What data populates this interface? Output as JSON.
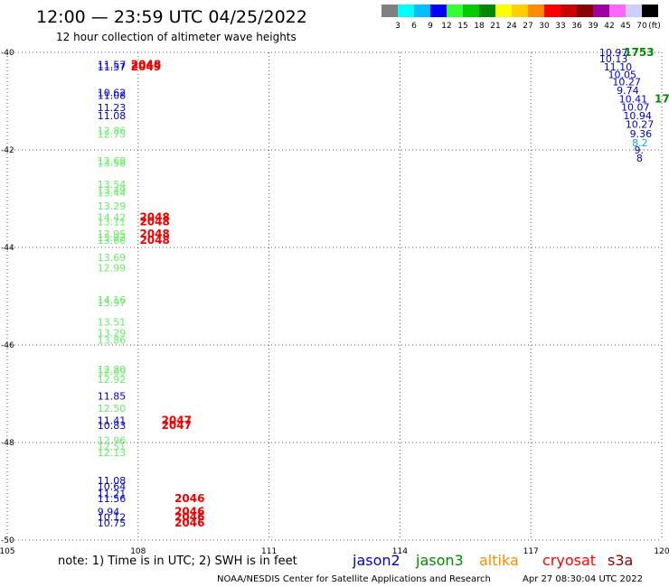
{
  "header": {
    "title": "12:00 — 23:59 UTC 04/25/2022",
    "subtitle": "12 hour collection of altimeter wave heights"
  },
  "legend_scale": {
    "colors": [
      "#808080",
      "#00ffff",
      "#00bfff",
      "#0000ff",
      "#33ff33",
      "#00cc00",
      "#008800",
      "#ffff00",
      "#ffd000",
      "#ff8c00",
      "#ff0000",
      "#cc0000",
      "#880000",
      "#a000a0",
      "#ff66ff",
      "#ccccff",
      "#000000"
    ],
    "labels": [
      "3",
      "6",
      "9",
      "12",
      "15",
      "18",
      "21",
      "24",
      "27",
      "30",
      "33",
      "36",
      "39",
      "42",
      "45",
      "70"
    ],
    "unit": "(ft)"
  },
  "footer": {
    "note": "note: 1) Time is in UTC; 2) SWH is in feet",
    "credit": "NOAA/NESDIS Center for Satellite Applications and Research",
    "timestamp": "Apr 27 08:30:04 UTC 2022"
  },
  "satellites": [
    {
      "name": "jason2",
      "color": "#0000cc"
    },
    {
      "name": "jason3",
      "color": "#008800"
    },
    {
      "name": "altika",
      "color": "#ff8c00"
    },
    {
      "name": "cryosat",
      "color": "#ff0000"
    },
    {
      "name": "s3a",
      "color": "#880000"
    }
  ],
  "chart_data": {
    "type": "scatter",
    "title": "12 hour collection of altimeter wave heights",
    "xlim": [
      105,
      120
    ],
    "ylim": [
      -50,
      -40
    ],
    "x_ticks": [
      "105",
      "108",
      "111",
      "114",
      "117",
      "120"
    ],
    "y_ticks": [
      "-40",
      "-42",
      "-44",
      "-46",
      "-48",
      "-50"
    ],
    "grid": true,
    "swh_labels": [
      {
        "lon": 108.0,
        "lat": -40.25,
        "text": "11.57",
        "color": "#0000cc"
      },
      {
        "lon": 108.0,
        "lat": -40.3,
        "text": "11.57",
        "color": "#0000cc"
      },
      {
        "lon": 108.0,
        "lat": -40.82,
        "text": "10.62",
        "color": "#0000cc"
      },
      {
        "lon": 108.0,
        "lat": -40.88,
        "text": "11.08",
        "color": "#0000cc"
      },
      {
        "lon": 108.0,
        "lat": -41.13,
        "text": "11.23",
        "color": "#0000cc"
      },
      {
        "lon": 108.0,
        "lat": -41.3,
        "text": "11.08",
        "color": "#0000cc"
      },
      {
        "lon": 108.0,
        "lat": -41.6,
        "text": "12.86",
        "color": "#66ee66"
      },
      {
        "lon": 108.0,
        "lat": -41.68,
        "text": "12.75",
        "color": "#66ee66"
      },
      {
        "lon": 108.0,
        "lat": -42.22,
        "text": "12.68",
        "color": "#66ee66"
      },
      {
        "lon": 108.0,
        "lat": -42.27,
        "text": "13.58",
        "color": "#66ee66"
      },
      {
        "lon": 108.0,
        "lat": -42.7,
        "text": "13.54",
        "color": "#66ee66"
      },
      {
        "lon": 108.0,
        "lat": -42.82,
        "text": "13.49",
        "color": "#66ee66"
      },
      {
        "lon": 108.0,
        "lat": -42.88,
        "text": "13.44",
        "color": "#66ee66"
      },
      {
        "lon": 108.0,
        "lat": -43.15,
        "text": "13.29",
        "color": "#66ee66"
      },
      {
        "lon": 108.0,
        "lat": -43.38,
        "text": "14.42",
        "color": "#66ee66"
      },
      {
        "lon": 108.0,
        "lat": -43.47,
        "text": "13.11",
        "color": "#66ee66"
      },
      {
        "lon": 108.0,
        "lat": -43.72,
        "text": "12.95",
        "color": "#66ee66"
      },
      {
        "lon": 108.0,
        "lat": -43.8,
        "text": "13.92",
        "color": "#66ee66"
      },
      {
        "lon": 108.0,
        "lat": -43.85,
        "text": "13.60",
        "color": "#66ee66"
      },
      {
        "lon": 108.0,
        "lat": -44.2,
        "text": "13.69",
        "color": "#66ee66"
      },
      {
        "lon": 108.0,
        "lat": -44.42,
        "text": "12.99",
        "color": "#66ee66"
      },
      {
        "lon": 108.0,
        "lat": -45.07,
        "text": "14.16",
        "color": "#66ee66"
      },
      {
        "lon": 108.0,
        "lat": -45.13,
        "text": "13.97",
        "color": "#66ee66"
      },
      {
        "lon": 108.0,
        "lat": -45.53,
        "text": "13.51",
        "color": "#66ee66"
      },
      {
        "lon": 108.0,
        "lat": -45.75,
        "text": "13.29",
        "color": "#66ee66"
      },
      {
        "lon": 108.0,
        "lat": -45.9,
        "text": "13.86",
        "color": "#66ee66"
      },
      {
        "lon": 108.0,
        "lat": -46.5,
        "text": "12.80",
        "color": "#66ee66"
      },
      {
        "lon": 108.0,
        "lat": -46.55,
        "text": "12.69",
        "color": "#66ee66"
      },
      {
        "lon": 108.0,
        "lat": -46.7,
        "text": "12.92",
        "color": "#66ee66"
      },
      {
        "lon": 108.0,
        "lat": -47.05,
        "text": "11.85",
        "color": "#0000cc"
      },
      {
        "lon": 108.0,
        "lat": -47.3,
        "text": "12.50",
        "color": "#66ee66"
      },
      {
        "lon": 108.0,
        "lat": -47.55,
        "text": "11.41",
        "color": "#0000cc"
      },
      {
        "lon": 108.0,
        "lat": -47.65,
        "text": "10.83",
        "color": "#0000cc"
      },
      {
        "lon": 108.0,
        "lat": -47.95,
        "text": "12.96",
        "color": "#66ee66"
      },
      {
        "lon": 108.0,
        "lat": -48.08,
        "text": "12.51",
        "color": "#66ee66"
      },
      {
        "lon": 108.0,
        "lat": -48.2,
        "text": "12.13",
        "color": "#66ee66"
      },
      {
        "lon": 108.0,
        "lat": -48.78,
        "text": "11.08",
        "color": "#0000cc"
      },
      {
        "lon": 108.0,
        "lat": -48.9,
        "text": "10.64",
        "color": "#0000cc"
      },
      {
        "lon": 108.0,
        "lat": -49.05,
        "text": "11.21",
        "color": "#0000cc"
      },
      {
        "lon": 108.0,
        "lat": -49.15,
        "text": "11.56",
        "color": "#0000cc"
      },
      {
        "lon": 108.0,
        "lat": -49.42,
        "text": "9.94",
        "color": "#0000cc"
      },
      {
        "lon": 108.0,
        "lat": -49.53,
        "text": "10.12",
        "color": "#0000cc"
      },
      {
        "lon": 108.0,
        "lat": -49.65,
        "text": "10.75",
        "color": "#0000cc"
      },
      {
        "lon": 119.5,
        "lat": -40.0,
        "text": "10.97",
        "color": "#0000cc"
      },
      {
        "lon": 119.5,
        "lat": -40.13,
        "text": "10.13",
        "color": "#0000cc"
      },
      {
        "lon": 119.6,
        "lat": -40.3,
        "text": "11.10",
        "color": "#0000cc"
      },
      {
        "lon": 119.7,
        "lat": -40.45,
        "text": "10.05",
        "color": "#0000cc"
      },
      {
        "lon": 119.8,
        "lat": -40.6,
        "text": "10.27",
        "color": "#0000cc"
      },
      {
        "lon": 119.9,
        "lat": -40.78,
        "text": "9.74",
        "color": "#0000cc"
      },
      {
        "lon": 119.95,
        "lat": -40.95,
        "text": "10.41",
        "color": "#0000cc"
      },
      {
        "lon": 120.0,
        "lat": -41.12,
        "text": "10.07",
        "color": "#0000cc"
      },
      {
        "lon": 120.05,
        "lat": -41.3,
        "text": "10.94",
        "color": "#0000cc"
      },
      {
        "lon": 120.1,
        "lat": -41.47,
        "text": "10.27",
        "color": "#0000cc"
      },
      {
        "lon": 120.2,
        "lat": -41.67,
        "text": "9.36",
        "color": "#0000cc"
      },
      {
        "lon": 120.25,
        "lat": -41.85,
        "text": "8.2",
        "color": "#00aacc"
      },
      {
        "lon": 120.3,
        "lat": -42.0,
        "text": "9.",
        "color": "#0000cc"
      },
      {
        "lon": 120.35,
        "lat": -42.17,
        "text": "8",
        "color": "#0000cc"
      }
    ],
    "time_labels": [
      {
        "lon": 108.0,
        "lat": -40.25,
        "text": "2048",
        "color": "#ee0000"
      },
      {
        "lon": 108.0,
        "lat": -40.3,
        "text": "2049",
        "color": "#ee0000"
      },
      {
        "lon": 108.2,
        "lat": -43.38,
        "text": "2048",
        "color": "#ee0000"
      },
      {
        "lon": 108.2,
        "lat": -43.47,
        "text": "2048",
        "color": "#ee0000"
      },
      {
        "lon": 108.2,
        "lat": -43.72,
        "text": "2048",
        "color": "#ee0000"
      },
      {
        "lon": 108.2,
        "lat": -43.85,
        "text": "2048",
        "color": "#ee0000"
      },
      {
        "lon": 108.7,
        "lat": -47.55,
        "text": "2047",
        "color": "#ee0000"
      },
      {
        "lon": 108.7,
        "lat": -47.65,
        "text": "2047",
        "color": "#ee0000"
      },
      {
        "lon": 109.0,
        "lat": -49.15,
        "text": "2046",
        "color": "#ee0000"
      },
      {
        "lon": 109.0,
        "lat": -49.42,
        "text": "2046",
        "color": "#ee0000"
      },
      {
        "lon": 109.0,
        "lat": -49.53,
        "text": "2046",
        "color": "#ee0000"
      },
      {
        "lon": 109.0,
        "lat": -49.65,
        "text": "2046",
        "color": "#ee0000"
      },
      {
        "lon": 119.3,
        "lat": -40.0,
        "text": "1753",
        "color": "#008800"
      },
      {
        "lon": 120.0,
        "lat": -40.95,
        "text": "17",
        "color": "#008800"
      }
    ]
  }
}
